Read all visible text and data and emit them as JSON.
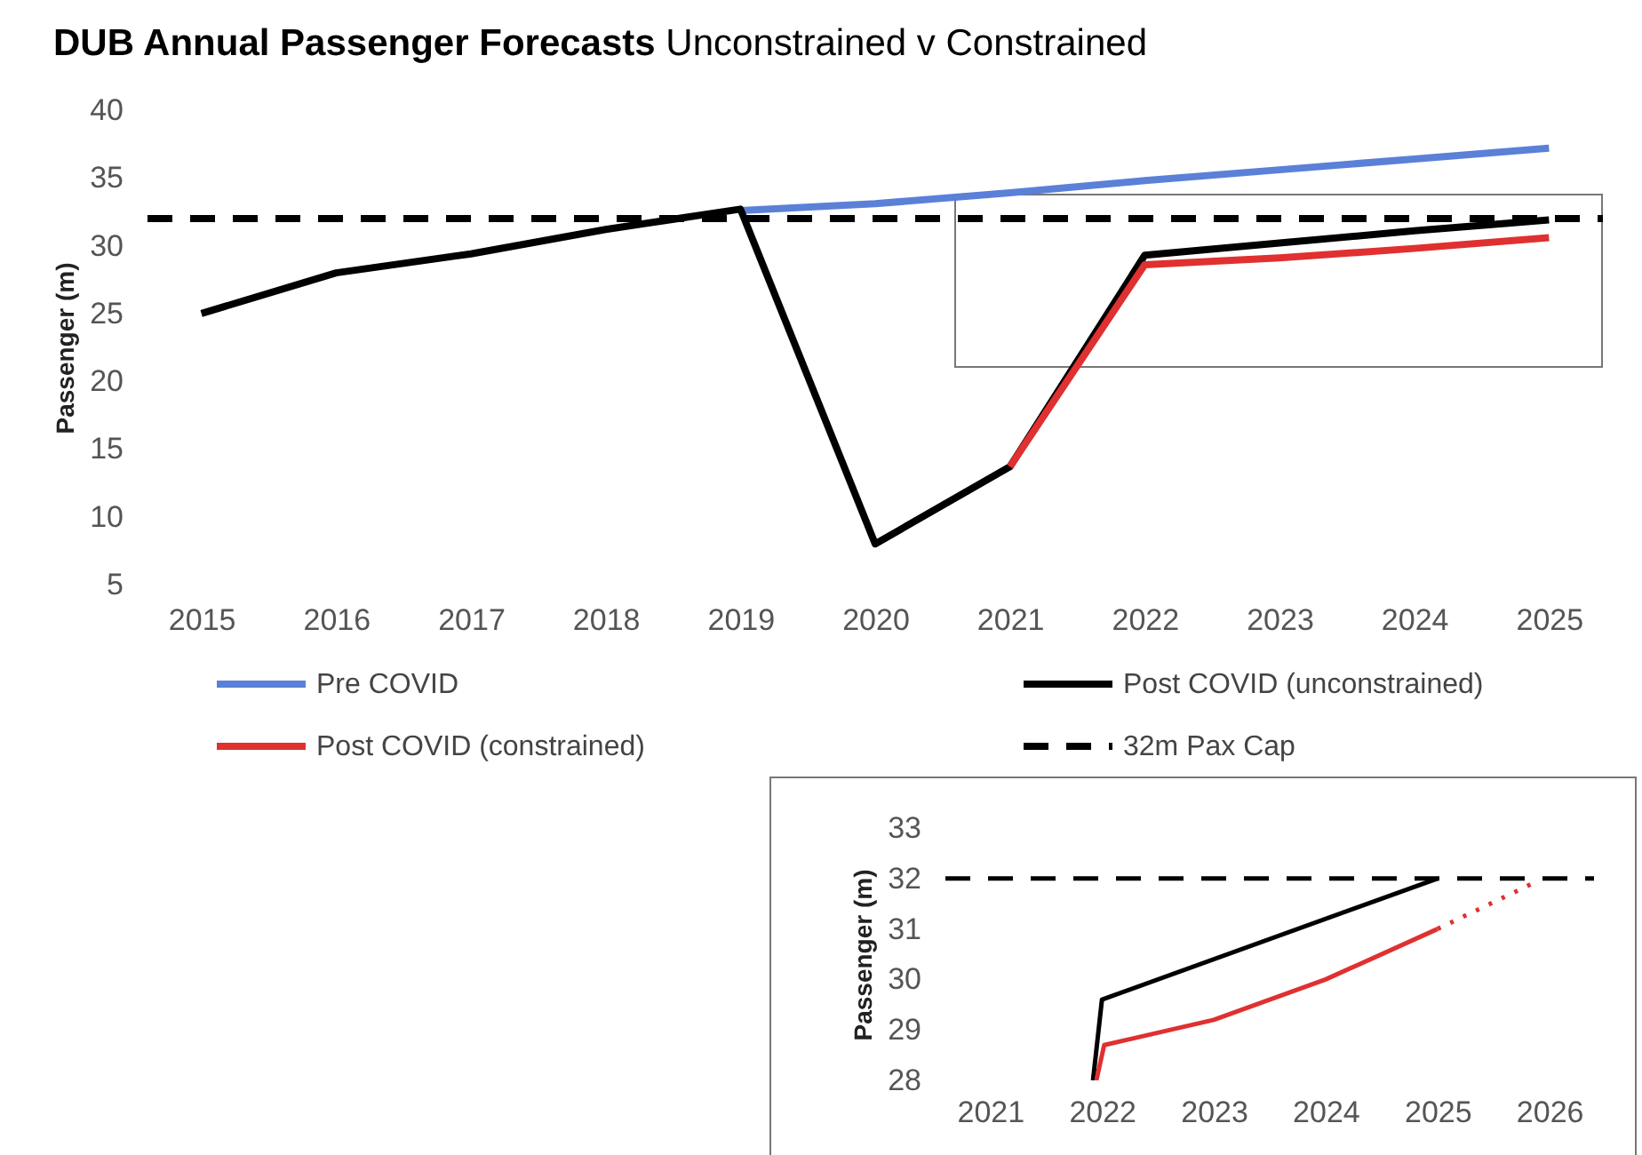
{
  "chart_data": [
    {
      "type": "line",
      "title": "DUB Annual Passenger Forecasts",
      "subtitle": "Unconstrained v Constrained",
      "ylabel": "Passenger (m)",
      "x": [
        2015,
        2016,
        2017,
        2018,
        2019,
        2020,
        2021,
        2022,
        2023,
        2024,
        2025
      ],
      "xlim": [
        2014.6,
        2025.4
      ],
      "xticks": [
        2015,
        2016,
        2017,
        2018,
        2019,
        2020,
        2021,
        2022,
        2023,
        2024,
        2025
      ],
      "ylim": [
        5,
        40
      ],
      "yticks": [
        5,
        10,
        15,
        20,
        25,
        30,
        35,
        40
      ],
      "series": [
        {
          "name": "Pre COVID",
          "color": "#5b80d8",
          "values": [
            null,
            null,
            null,
            null,
            32.6,
            33.1,
            33.9,
            34.8,
            35.6,
            36.4,
            37.2
          ]
        },
        {
          "name": "Post COVID (unconstrained)",
          "color": "#000000",
          "values": [
            25,
            28,
            29.4,
            31.2,
            32.7,
            8,
            13.7,
            29.3,
            30.2,
            31.1,
            31.9
          ]
        },
        {
          "name": "Post COVID (constrained)",
          "color": "#e03030",
          "values": [
            null,
            null,
            null,
            null,
            null,
            null,
            13.7,
            28.6,
            29.1,
            29.8,
            30.6
          ]
        }
      ],
      "ref_lines": [
        {
          "axis": "y",
          "value": 32,
          "label": "32m Pax Cap",
          "color": "#000000",
          "line_style": "dashed"
        }
      ],
      "legend": "bottom",
      "grid": false,
      "marker": "none"
    },
    {
      "type": "line",
      "ylabel": "Passenger (m)",
      "xlim": [
        2020.6,
        2026.4
      ],
      "xticks": [
        2021,
        2022,
        2023,
        2024,
        2025,
        2026
      ],
      "ylim": [
        28,
        33
      ],
      "yticks": [
        28,
        29,
        30,
        31,
        32,
        33
      ],
      "series": [
        {
          "color": "#000000",
          "x": [
            2021.92,
            2022,
            2025
          ],
          "values": [
            28,
            29.6,
            32
          ]
        },
        {
          "color": "#e03030",
          "x": [
            2021.95,
            2022.02,
            2023,
            2024,
            2025
          ],
          "values": [
            28,
            28.7,
            29.2,
            30,
            31
          ]
        },
        {
          "color": "#e03030",
          "x": [
            2025,
            2025.85
          ],
          "values": [
            31,
            31.9
          ],
          "line_style": "dotted"
        }
      ],
      "ref_lines": [
        {
          "axis": "y",
          "value": 32,
          "color": "#000000",
          "line_style": "dashed"
        }
      ],
      "legend": false,
      "grid": false,
      "marker": "none"
    }
  ]
}
